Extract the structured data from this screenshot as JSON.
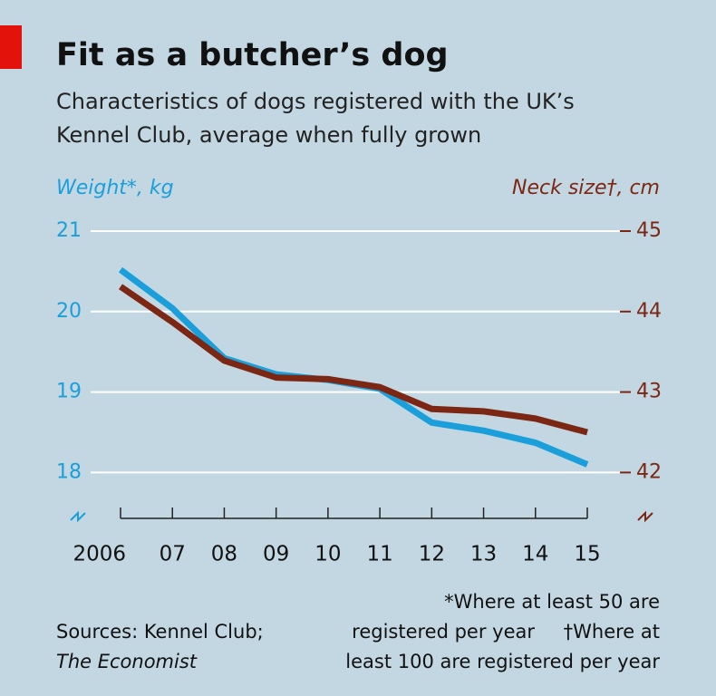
{
  "chart_data": {
    "type": "line",
    "title": "Fit as a butcher’s dog",
    "subtitle": [
      "Characteristics of dogs registered with the UK’s",
      "Kennel Club, average when fully grown"
    ],
    "y_label": "Weight*, kg",
    "y2_label": "Neck size†, cm",
    "categories": [
      "2006",
      "07",
      "08",
      "09",
      "10",
      "11",
      "12",
      "13",
      "14",
      "15"
    ],
    "series": [
      {
        "name": "Weight",
        "color": "#1a9fdb",
        "axis": "y",
        "values": [
          20.52,
          20.04,
          19.42,
          19.22,
          19.15,
          19.04,
          18.62,
          18.52,
          18.37,
          18.1
        ]
      },
      {
        "name": "Neck size",
        "color": "#7b2713",
        "axis": "y2",
        "values": [
          44.31,
          43.87,
          43.39,
          43.18,
          43.16,
          43.06,
          42.79,
          42.76,
          42.67,
          42.5
        ]
      }
    ],
    "ylim": [
      17.43,
      21
    ],
    "yticks": [
      18,
      19,
      20,
      21
    ],
    "y2lim": [
      41.43,
      45
    ],
    "y2ticks": [
      42,
      43,
      44,
      45
    ],
    "grid": true,
    "notes": [
      "*Where at least 50 are",
      "registered per year",
      "†Where at",
      "least 100 are registered per year"
    ],
    "sources": [
      "Sources: Kennel Club;",
      "The Economist"
    ]
  }
}
